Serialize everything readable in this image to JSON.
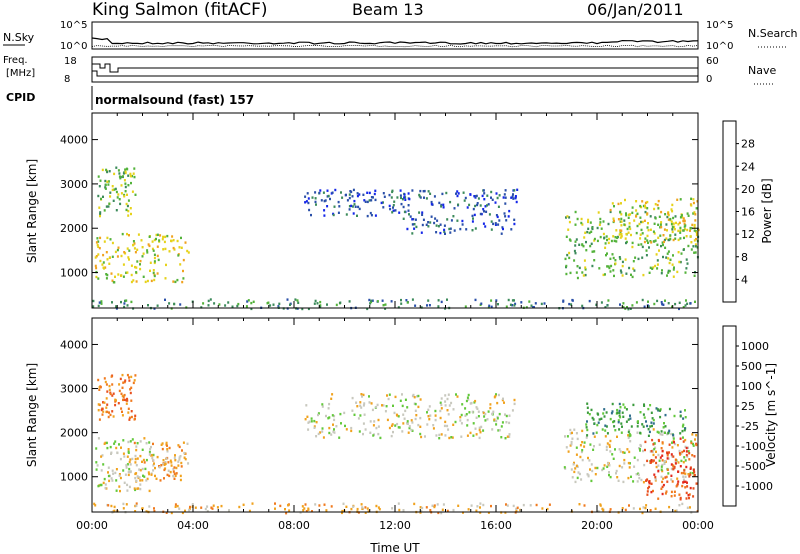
{
  "header": {
    "station": "King Salmon (fitACF)",
    "beam": "Beam 13",
    "date": "06/Jan/2011"
  },
  "strip": {
    "nsky_label": "N.Sky",
    "freq_label": "Freq.",
    "freq_unit": "[MHz]",
    "cpid_label": "CPID",
    "nsearch_label": "N.Search",
    "nave_label": "Nave",
    "noise_ticks_left": [
      "10^5",
      "10^0"
    ],
    "noise_ticks_right": [
      "10^5",
      "10^0"
    ],
    "freq_ticks": [
      "18",
      "8"
    ],
    "nave_ticks": [
      "60",
      "0"
    ],
    "cpid_text": "normalsound (fast) 157"
  },
  "chart_data": [
    {
      "type": "heatmap",
      "title": "",
      "ylabel": "Slant Range [km]",
      "xlim": [
        "00:00",
        "24:00"
      ],
      "ylim": [
        200,
        4600
      ],
      "yticks": [
        1000,
        2000,
        3000,
        4000
      ],
      "colorbar": {
        "label": "Power [dB]",
        "ticks": [
          "4",
          "8",
          "12",
          "16",
          "20",
          "24",
          "28"
        ],
        "colors": [
          "#1426e8",
          "#2a4fa8",
          "#3b8a5a",
          "#53b23a",
          "#e6d21a",
          "#f0a21e",
          "#f06e1e",
          "#e3281c"
        ]
      },
      "echo_regions": [
        {
          "t0": 0.2,
          "t1": 1.7,
          "r0": 2300,
          "r1": 3400,
          "level": 3
        },
        {
          "t0": 0.1,
          "t1": 3.8,
          "r0": 800,
          "r1": 1900,
          "level": 4
        },
        {
          "t0": 8.4,
          "t1": 12.6,
          "r0": 2300,
          "r1": 2900,
          "level": 1
        },
        {
          "t0": 12.3,
          "t1": 16.8,
          "r0": 1900,
          "r1": 2900,
          "level": 1
        },
        {
          "t0": 18.7,
          "t1": 24.0,
          "r0": 900,
          "r1": 2400,
          "level": 3
        },
        {
          "t0": 20.5,
          "t1": 24.0,
          "r0": 1700,
          "r1": 2700,
          "level": 4
        },
        {
          "t0": 0.0,
          "t1": 24.0,
          "r0": 200,
          "r1": 420,
          "level": 2
        }
      ]
    },
    {
      "type": "heatmap",
      "title": "",
      "xlabel": "Time UT",
      "ylabel": "Slant Range [km]",
      "xlim": [
        "00:00",
        "24:00"
      ],
      "xticks": [
        "00:00",
        "04:00",
        "08:00",
        "12:00",
        "16:00",
        "20:00",
        "00:00"
      ],
      "ylim": [
        200,
        4600
      ],
      "yticks": [
        1000,
        2000,
        3000,
        4000
      ],
      "colorbar": {
        "label": "Velocity [m s^-1]",
        "ticks": [
          "1000",
          "500",
          "100",
          "25",
          "-25",
          "-100",
          "-500",
          "-1000"
        ],
        "colors": [
          "#1e3cb4",
          "#2f6e8c",
          "#3a9a3c",
          "#62c83a",
          "#c8c8be",
          "#f0a21e",
          "#f07a1e",
          "#e8501e",
          "#e3281c"
        ]
      },
      "echo_regions": [
        {
          "t0": 0.2,
          "t1": 1.7,
          "r0": 2300,
          "r1": 3400,
          "level": 6
        },
        {
          "t0": 0.1,
          "t1": 2.4,
          "r0": 700,
          "r1": 1900,
          "level": 4
        },
        {
          "t0": 1.6,
          "t1": 3.8,
          "r0": 900,
          "r1": 1800,
          "level": 5
        },
        {
          "t0": 8.4,
          "t1": 16.8,
          "r0": 1900,
          "r1": 2900,
          "level": 4
        },
        {
          "t0": 18.6,
          "t1": 24.0,
          "r0": 900,
          "r1": 2100,
          "level": 4
        },
        {
          "t0": 19.5,
          "t1": 23.5,
          "r0": 1950,
          "r1": 2700,
          "level": 2
        },
        {
          "t0": 21.8,
          "t1": 24.0,
          "r0": 500,
          "r1": 1900,
          "level": 7
        },
        {
          "t0": 0.0,
          "t1": 24.0,
          "r0": 200,
          "r1": 420,
          "level": 5
        }
      ]
    }
  ]
}
